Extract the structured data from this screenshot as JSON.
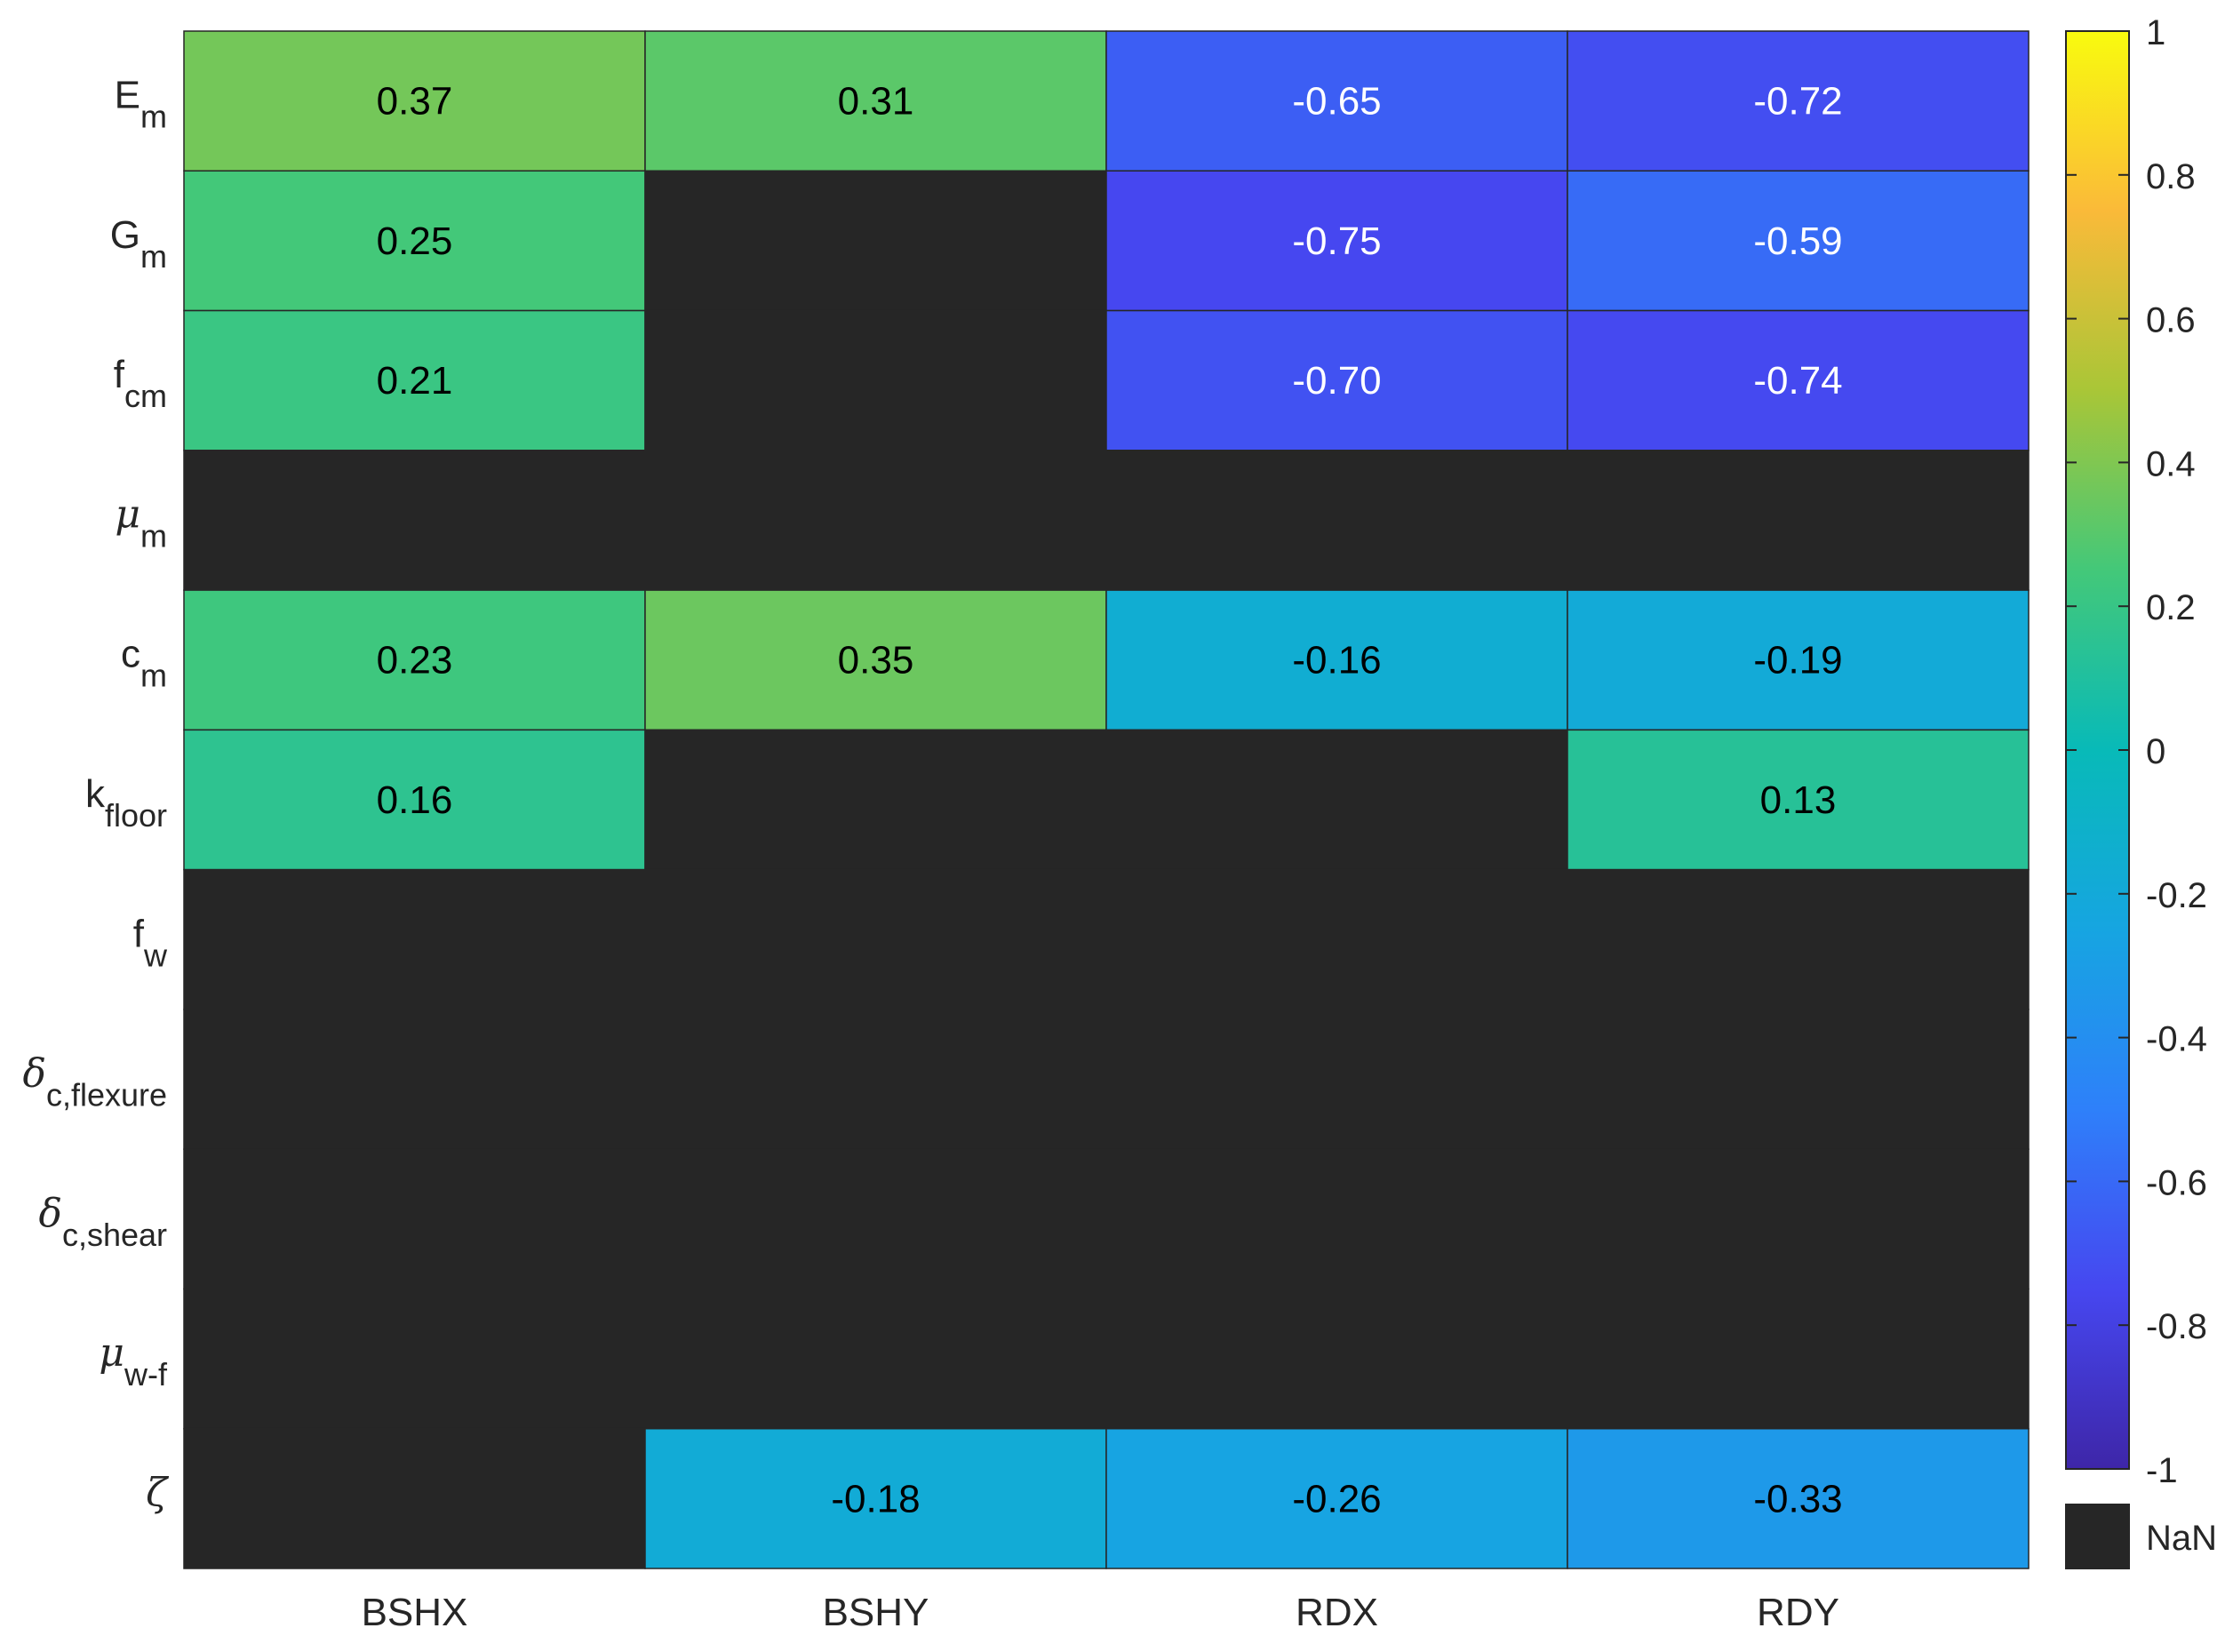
{
  "chart_data": {
    "type": "heatmap",
    "title": "",
    "xlabel": "",
    "ylabel": "",
    "columns": [
      "BSHX",
      "BSHY",
      "RDX",
      "RDY"
    ],
    "rows": [
      {
        "base": "E",
        "sub": "m",
        "greek": false
      },
      {
        "base": "G",
        "sub": "m",
        "greek": false
      },
      {
        "base": "f",
        "sub": "cm",
        "greek": false
      },
      {
        "base": "μ",
        "sub": "m",
        "greek": true
      },
      {
        "base": "c",
        "sub": "m",
        "greek": false
      },
      {
        "base": "k",
        "sub": "floor",
        "greek": false
      },
      {
        "base": "f",
        "sub": "w",
        "greek": false
      },
      {
        "base": "δ",
        "sub": "c,flexure",
        "greek": true
      },
      {
        "base": "δ",
        "sub": "c,shear",
        "greek": true
      },
      {
        "base": "μ",
        "sub": "w-f",
        "greek": true
      },
      {
        "base": "ζ",
        "sub": "",
        "greek": true
      }
    ],
    "values": [
      [
        0.37,
        0.31,
        -0.65,
        -0.72
      ],
      [
        0.25,
        null,
        -0.75,
        -0.59
      ],
      [
        0.21,
        null,
        -0.7,
        -0.74
      ],
      [
        null,
        null,
        null,
        null
      ],
      [
        0.23,
        0.35,
        -0.16,
        -0.19
      ],
      [
        0.16,
        null,
        null,
        0.13
      ],
      [
        null,
        null,
        null,
        null
      ],
      [
        null,
        null,
        null,
        null
      ],
      [
        null,
        null,
        null,
        null
      ],
      [
        null,
        null,
        null,
        null
      ],
      [
        null,
        -0.18,
        -0.26,
        -0.33
      ]
    ],
    "value_labels": [
      [
        "0.37",
        "0.31",
        "-0.65",
        "-0.72"
      ],
      [
        "0.25",
        "",
        "-0.75",
        "-0.59"
      ],
      [
        "0.21",
        "",
        "-0.70",
        "-0.74"
      ],
      [
        "",
        "",
        "",
        ""
      ],
      [
        "0.23",
        "0.35",
        "-0.16",
        "-0.19"
      ],
      [
        "0.16",
        "",
        "",
        "0.13"
      ],
      [
        "",
        "",
        "",
        ""
      ],
      [
        "",
        "",
        "",
        ""
      ],
      [
        "",
        "",
        "",
        ""
      ],
      [
        "",
        "",
        "",
        ""
      ],
      [
        "",
        "-0.18",
        "-0.26",
        "-0.33"
      ]
    ],
    "colorbar": {
      "colormap": "parula",
      "range": [
        -1,
        1
      ],
      "ticks": [
        1,
        0.8,
        0.6,
        0.4,
        0.2,
        0,
        -0.2,
        -0.4,
        -0.6,
        -0.8,
        -1
      ],
      "tick_labels": [
        "1",
        "0.8",
        "0.6",
        "0.4",
        "0.2",
        "0",
        "-0.2",
        "-0.4",
        "-0.6",
        "-0.8",
        "-1"
      ],
      "nan_label": "NaN"
    },
    "colors": {
      "nan": "#262626",
      "grid": "#262626",
      "text_light": "#ffffff",
      "text_dark": "#000000"
    }
  }
}
